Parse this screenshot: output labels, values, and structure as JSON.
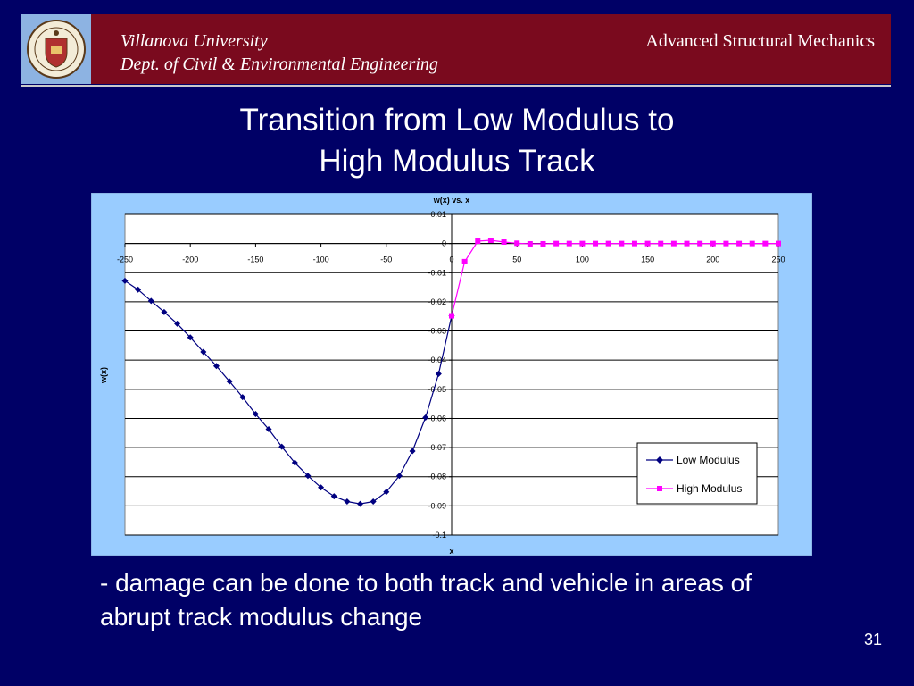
{
  "header": {
    "university": "Villanova University",
    "department": "Dept. of Civil & Environmental Engineering",
    "course": "Advanced Structural Mechanics"
  },
  "slide": {
    "title_line1": "Transition from Low Modulus to",
    "title_line2": "High Modulus Track",
    "bullet": "- damage can be done to both track and vehicle in areas of abrupt track modulus change",
    "page_number": "31"
  },
  "colors": {
    "background": "#000066",
    "header": "#7a0a1e",
    "chart_frame": "#99ccff",
    "low_modulus": "#000080",
    "high_modulus": "#ff00ff"
  },
  "chart_data": {
    "type": "line",
    "title": "w(x) vs. x",
    "xlabel": "x",
    "ylabel": "w(x)",
    "xlim": [
      -250,
      250
    ],
    "ylim": [
      -0.1,
      0.01
    ],
    "x_ticks": [
      "-250",
      "-200",
      "-150",
      "-100",
      "-50",
      "0",
      "50",
      "100",
      "150",
      "200",
      "250"
    ],
    "y_ticks": [
      "0.01",
      "0",
      "-0.01",
      "-0.02",
      "-0.03",
      "-0.04",
      "-0.05",
      "-0.06",
      "-0.07",
      "-0.08",
      "-0.09",
      "-0.1"
    ],
    "grid": "horizontal",
    "legend_position": "bottom-right",
    "series": [
      {
        "name": "Low Modulus",
        "color": "#000080",
        "marker": "diamond",
        "x": [
          -250,
          -240,
          -230,
          -220,
          -210,
          -200,
          -190,
          -180,
          -170,
          -160,
          -150,
          -140,
          -130,
          -120,
          -110,
          -100,
          -90,
          -80,
          -70,
          -60,
          -50,
          -40,
          -30,
          -20,
          -10,
          0
        ],
        "y": [
          -0.0128,
          -0.0158,
          -0.0197,
          -0.0235,
          -0.0275,
          -0.0322,
          -0.0372,
          -0.042,
          -0.0473,
          -0.0527,
          -0.0585,
          -0.0637,
          -0.0697,
          -0.0752,
          -0.0797,
          -0.0837,
          -0.0867,
          -0.0885,
          -0.0893,
          -0.0885,
          -0.0852,
          -0.0797,
          -0.0712,
          -0.0597,
          -0.0447,
          -0.0248
        ]
      },
      {
        "name": "High Modulus",
        "color": "#ff00ff",
        "marker": "square",
        "x": [
          0,
          10,
          20,
          30,
          40,
          50,
          60,
          70,
          80,
          90,
          100,
          110,
          120,
          130,
          140,
          150,
          160,
          170,
          180,
          190,
          200,
          210,
          220,
          230,
          240,
          250
        ],
        "y": [
          -0.0248,
          -0.0062,
          0.0008,
          0.0011,
          0.0005,
          0.0001,
          -0.0001,
          -0.0001,
          0.0,
          0.0,
          0.0,
          0.0,
          0.0,
          0.0,
          0.0,
          0.0,
          0.0,
          0.0,
          0.0,
          0.0,
          0.0,
          0.0,
          0.0,
          0.0,
          0.0,
          0.0
        ]
      }
    ]
  }
}
